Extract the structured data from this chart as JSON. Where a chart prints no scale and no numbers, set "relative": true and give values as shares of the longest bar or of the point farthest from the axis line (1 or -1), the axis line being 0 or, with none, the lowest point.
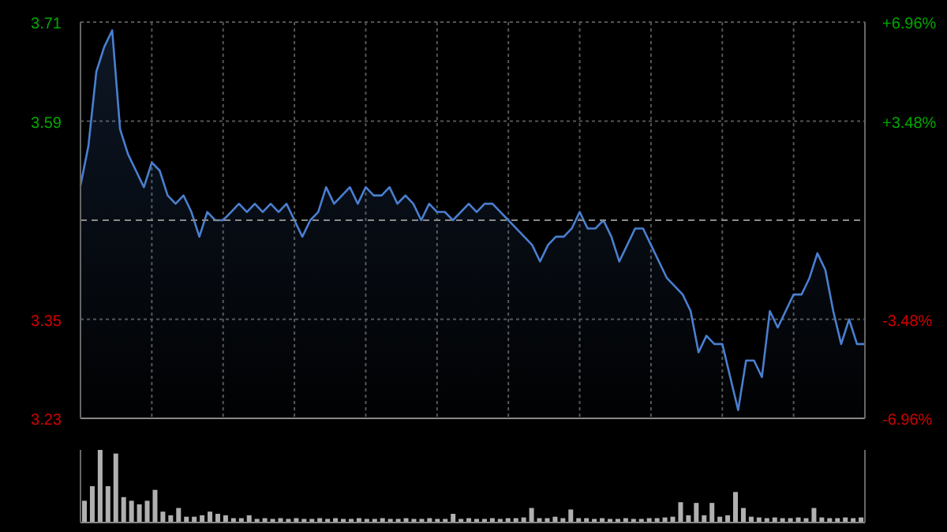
{
  "chart_data": [
    {
      "type": "area",
      "categories": [
        null,
        null,
        null,
        null,
        null,
        null,
        null,
        null,
        null,
        null,
        null,
        null,
        null,
        null,
        null,
        null,
        null,
        null,
        null,
        null,
        null,
        null,
        null,
        null,
        null,
        null,
        null,
        null,
        null,
        null,
        null,
        null,
        null,
        null,
        null,
        null,
        null,
        null,
        null,
        null,
        null,
        null,
        null,
        null,
        null,
        null,
        null,
        null,
        null,
        null,
        null,
        null,
        null,
        null,
        null,
        null,
        null,
        null,
        null,
        null,
        null,
        null,
        null,
        null,
        null,
        null,
        null,
        null,
        null,
        null,
        null,
        null,
        null,
        null,
        null,
        null,
        null,
        null,
        null,
        null,
        null,
        null,
        null,
        null,
        null,
        null,
        null,
        null,
        null,
        null,
        null,
        null,
        null,
        null,
        null,
        null,
        null,
        null,
        null,
        null
      ],
      "series": [
        {
          "color": "#4a7fd0",
          "values": [
            3.512,
            3.56,
            3.65,
            3.68,
            3.7,
            3.58,
            3.55,
            3.53,
            3.51,
            3.54,
            3.53,
            3.5,
            3.49,
            3.5,
            3.48,
            3.45,
            3.48,
            3.47,
            3.47,
            3.48,
            3.49,
            3.48,
            3.49,
            3.48,
            3.49,
            3.48,
            3.49,
            3.47,
            3.45,
            3.47,
            3.48,
            3.51,
            3.49,
            3.5,
            3.51,
            3.49,
            3.51,
            3.5,
            3.5,
            3.51,
            3.49,
            3.5,
            3.49,
            3.47,
            3.49,
            3.48,
            3.48,
            3.47,
            3.48,
            3.49,
            3.48,
            3.49,
            3.49,
            3.48,
            3.47,
            3.46,
            3.45,
            3.44,
            3.42,
            3.44,
            3.45,
            3.45,
            3.46,
            3.48,
            3.46,
            3.46,
            3.47,
            3.45,
            3.42,
            3.44,
            3.46,
            3.46,
            3.44,
            3.42,
            3.4,
            3.39,
            3.38,
            3.36,
            3.31,
            3.33,
            3.32,
            3.32,
            3.28,
            3.24,
            3.3,
            3.3,
            3.28,
            3.36,
            3.34,
            3.36,
            3.38,
            3.38,
            3.4,
            3.43,
            3.41,
            3.36,
            3.32,
            3.35,
            3.32,
            3.32
          ]
        }
      ],
      "ylim": [
        3.23,
        3.71
      ],
      "yticks": [
        3.71,
        3.59,
        3.35,
        3.23
      ],
      "y2lim": [
        -6.96,
        6.96
      ],
      "y2ticks": [
        {
          "value": 6.96,
          "label": "+6.96%"
        },
        {
          "value": 3.48,
          "label": "+3.48%"
        },
        {
          "value": -3.48,
          "label": "-3.48%"
        },
        {
          "value": -6.96,
          "label": "-6.96%"
        }
      ],
      "ref_lines": [
        {
          "axis": "y",
          "value": 3.47,
          "color": "#8a8a8a",
          "line_style": "dashed"
        }
      ],
      "grid": true,
      "tick_labels": "y"
    },
    {
      "type": "bar",
      "relative": true,
      "tick_labels": false,
      "categories": [
        null,
        null,
        null,
        null,
        null,
        null,
        null,
        null,
        null,
        null,
        null,
        null,
        null,
        null,
        null,
        null,
        null,
        null,
        null,
        null,
        null,
        null,
        null,
        null,
        null,
        null,
        null,
        null,
        null,
        null,
        null,
        null,
        null,
        null,
        null,
        null,
        null,
        null,
        null,
        null,
        null,
        null,
        null,
        null,
        null,
        null,
        null,
        null,
        null,
        null,
        null,
        null,
        null,
        null,
        null,
        null,
        null,
        null,
        null,
        null,
        null,
        null,
        null,
        null,
        null,
        null,
        null,
        null,
        null,
        null,
        null,
        null,
        null,
        null,
        null,
        null,
        null,
        null,
        null,
        null,
        null,
        null,
        null,
        null,
        null,
        null,
        null,
        null,
        null,
        null,
        null,
        null,
        null,
        null,
        null,
        null,
        null,
        null,
        null,
        null
      ],
      "series": [
        {
          "color": "#b0b0b0",
          "values": [
            0.3,
            0.5,
            1.0,
            0.5,
            0.95,
            0.35,
            0.3,
            0.25,
            0.3,
            0.45,
            0.15,
            0.1,
            0.2,
            0.08,
            0.08,
            0.1,
            0.15,
            0.12,
            0.1,
            0.06,
            0.06,
            0.1,
            0.05,
            0.06,
            0.05,
            0.06,
            0.05,
            0.06,
            0.05,
            0.05,
            0.06,
            0.05,
            0.06,
            0.05,
            0.05,
            0.06,
            0.05,
            0.05,
            0.06,
            0.05,
            0.05,
            0.06,
            0.05,
            0.05,
            0.06,
            0.05,
            0.05,
            0.12,
            0.05,
            0.06,
            0.05,
            0.05,
            0.06,
            0.05,
            0.06,
            0.06,
            0.07,
            0.2,
            0.06,
            0.06,
            0.08,
            0.06,
            0.18,
            0.06,
            0.06,
            0.05,
            0.06,
            0.05,
            0.05,
            0.06,
            0.05,
            0.05,
            0.06,
            0.06,
            0.07,
            0.08,
            0.28,
            0.1,
            0.27,
            0.1,
            0.27,
            0.08,
            0.1,
            0.42,
            0.2,
            0.08,
            0.07,
            0.06,
            0.07,
            0.06,
            0.06,
            0.07,
            0.06,
            0.2,
            0.07,
            0.06,
            0.06,
            0.07,
            0.06,
            0.07
          ]
        }
      ]
    }
  ]
}
